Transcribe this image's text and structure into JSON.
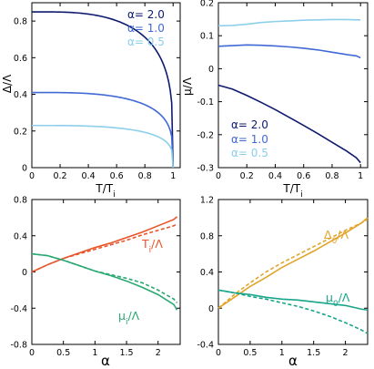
{
  "colors": {
    "alpha_2": "#0d1a6e",
    "alpha_1": "#4169d6",
    "alpha_05": "#8ccfea",
    "t_i": "#e8552a",
    "mu_i": "#2aa872",
    "delta_0": "#e2a42a",
    "mu_0": "#18a58a"
  },
  "chart_data": [
    {
      "type": "line",
      "xlabel": "T/T_i",
      "ylabel": "Δ/Λ",
      "xlim": [
        0,
        1.05
      ],
      "ylim": [
        0,
        0.9
      ],
      "xticks": [
        "0",
        "0.2",
        "0.4",
        "0.6",
        "0.8",
        "1"
      ],
      "yticks": [
        "0",
        "0.2",
        "0.4",
        "0.6",
        "0.8"
      ],
      "legend": [
        "α= 2.0",
        "α= 1.0",
        "α= 0.5"
      ],
      "series": [
        {
          "name": "α= 2.0",
          "kind": "gap",
          "v0": 0.85
        },
        {
          "name": "α= 1.0",
          "kind": "gap",
          "v0": 0.41
        },
        {
          "name": "α= 0.5",
          "kind": "gap",
          "v0": 0.23
        }
      ]
    },
    {
      "type": "line",
      "xlabel": "T/T_i",
      "ylabel": "μ/Λ",
      "xlim": [
        0,
        1.05
      ],
      "ylim": [
        -0.3,
        0.2
      ],
      "xticks": [
        "0",
        "0.2",
        "0.4",
        "0.6",
        "0.8",
        "1"
      ],
      "yticks": [
        "0.2",
        "0.1",
        "0",
        "-0.1",
        "-0.2",
        "-0.3"
      ],
      "legend": [
        "α= 2.0",
        "α= 1.0",
        "α= 0.5"
      ],
      "series": [
        {
          "name": "α= 2.0",
          "x": [
            0,
            0.1,
            0.2,
            0.3,
            0.4,
            0.5,
            0.6,
            0.7,
            0.8,
            0.9,
            0.97,
            1.0
          ],
          "y": [
            -0.05,
            -0.062,
            -0.081,
            -0.102,
            -0.124,
            -0.148,
            -0.172,
            -0.197,
            -0.223,
            -0.249,
            -0.27,
            -0.285
          ]
        },
        {
          "name": "α= 1.0",
          "x": [
            0,
            0.1,
            0.2,
            0.3,
            0.4,
            0.5,
            0.6,
            0.7,
            0.8,
            0.9,
            0.97,
            1.0
          ],
          "y": [
            0.068,
            0.07,
            0.072,
            0.071,
            0.069,
            0.066,
            0.062,
            0.057,
            0.05,
            0.043,
            0.039,
            0.033
          ]
        },
        {
          "name": "α= 0.5",
          "x": [
            0,
            0.1,
            0.2,
            0.3,
            0.4,
            0.5,
            0.6,
            0.7,
            0.8,
            0.9,
            0.97,
            1.0
          ],
          "y": [
            0.13,
            0.131,
            0.135,
            0.14,
            0.143,
            0.145,
            0.147,
            0.148,
            0.149,
            0.149,
            0.148,
            0.148
          ]
        }
      ]
    },
    {
      "type": "line",
      "xlabel": "α",
      "ylabel": "",
      "xlim": [
        0,
        2.35
      ],
      "ylim": [
        -0.8,
        0.8
      ],
      "xticks": [
        "0",
        "0.5",
        "1",
        "1.5",
        "2"
      ],
      "yticks": [
        "0.8",
        "0.4",
        "0",
        "-0.4",
        "-0.8"
      ],
      "annotations": [
        "T_i/Λ",
        "μ_i/Λ"
      ],
      "series": [
        {
          "name": "T_i/Λ",
          "style": "solid",
          "x": [
            0,
            0.25,
            0.5,
            0.75,
            1.0,
            1.25,
            1.5,
            1.75,
            2.0,
            2.25,
            2.3
          ],
          "y": [
            0.0,
            0.08,
            0.15,
            0.21,
            0.27,
            0.32,
            0.38,
            0.44,
            0.51,
            0.58,
            0.61
          ]
        },
        {
          "name": "T_i/Λ",
          "style": "dashed",
          "x": [
            0,
            0.25,
            0.5,
            0.75,
            1.0,
            1.25,
            1.5,
            1.75,
            2.0,
            2.25,
            2.3
          ],
          "y": [
            0.0,
            0.08,
            0.15,
            0.2,
            0.25,
            0.3,
            0.35,
            0.41,
            0.46,
            0.51,
            0.53
          ]
        },
        {
          "name": "μ_i/Λ",
          "style": "solid",
          "x": [
            0,
            0.25,
            0.5,
            0.75,
            1.0,
            1.25,
            1.5,
            1.75,
            2.0,
            2.25,
            2.3
          ],
          "y": [
            0.2,
            0.18,
            0.13,
            0.07,
            0.01,
            -0.04,
            -0.1,
            -0.17,
            -0.25,
            -0.36,
            -0.42
          ]
        },
        {
          "name": "μ_i/Λ",
          "style": "dashed",
          "x": [
            0,
            0.25,
            0.5,
            0.75,
            1.0,
            1.25,
            1.5,
            1.75,
            2.0,
            2.25,
            2.3
          ],
          "y": [
            0.2,
            0.18,
            0.13,
            0.07,
            0.01,
            -0.03,
            -0.07,
            -0.12,
            -0.2,
            -0.3,
            -0.34
          ]
        }
      ]
    },
    {
      "type": "line",
      "xlabel": "α",
      "ylabel": "",
      "xlim": [
        0,
        2.35
      ],
      "ylim": [
        -0.4,
        1.2
      ],
      "xticks": [
        "0",
        "0.5",
        "1",
        "1.5",
        "2"
      ],
      "yticks": [
        "1.2",
        "0.8",
        "0.4",
        "0",
        "-0.4"
      ],
      "annotations": [
        "Δ_0/Λ",
        "μ_0/Λ"
      ],
      "series": [
        {
          "name": "Δ_0/Λ",
          "style": "solid",
          "x": [
            0,
            0.25,
            0.5,
            0.75,
            1.0,
            1.25,
            1.5,
            1.75,
            2.0,
            2.25,
            2.35
          ],
          "y": [
            0.0,
            0.12,
            0.24,
            0.34,
            0.45,
            0.54,
            0.63,
            0.73,
            0.83,
            0.94,
            1.0
          ]
        },
        {
          "name": "Δ_0/Λ",
          "style": "dashed",
          "x": [
            0,
            0.25,
            0.5,
            0.75,
            1.0,
            1.25,
            1.5,
            1.75,
            2.0,
            2.25,
            2.35
          ],
          "y": [
            0.0,
            0.15,
            0.28,
            0.4,
            0.5,
            0.59,
            0.68,
            0.77,
            0.86,
            0.94,
            0.98
          ]
        },
        {
          "name": "μ_0/Λ",
          "style": "solid",
          "x": [
            0,
            0.25,
            0.5,
            0.75,
            1.0,
            1.25,
            1.5,
            1.75,
            2.0,
            2.25,
            2.35
          ],
          "y": [
            0.2,
            0.17,
            0.15,
            0.12,
            0.1,
            0.09,
            0.07,
            0.05,
            0.03,
            -0.01,
            -0.02
          ]
        },
        {
          "name": "μ_0/Λ",
          "style": "dashed",
          "x": [
            0,
            0.25,
            0.5,
            0.75,
            1.0,
            1.25,
            1.5,
            1.75,
            2.0,
            2.25,
            2.35
          ],
          "y": [
            0.2,
            0.17,
            0.13,
            0.1,
            0.06,
            0.02,
            -0.03,
            -0.09,
            -0.16,
            -0.24,
            -0.28
          ]
        }
      ]
    }
  ]
}
